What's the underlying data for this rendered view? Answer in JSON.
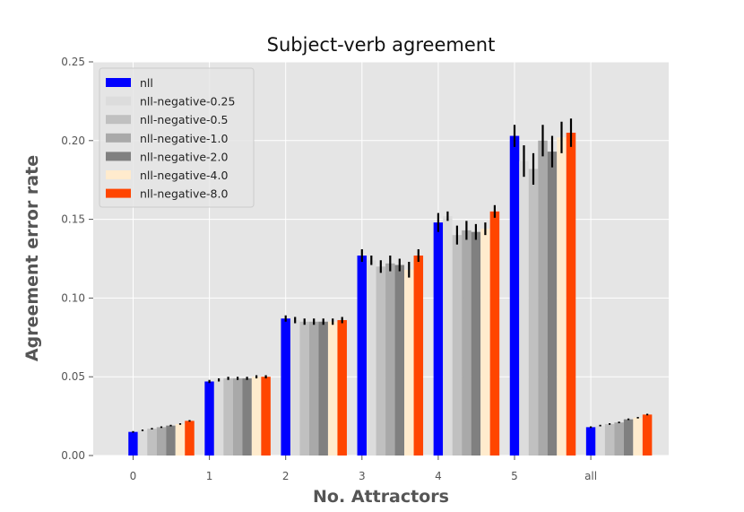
{
  "chart_data": {
    "type": "bar",
    "title": "Subject-verb agreement",
    "xlabel": "No. Attractors",
    "ylabel": "Agreement error rate",
    "categories": [
      "0",
      "1",
      "2",
      "3",
      "4",
      "5",
      "all"
    ],
    "ylim": [
      0,
      0.25
    ],
    "yticks": [
      "0.00",
      "0.05",
      "0.10",
      "0.15",
      "0.20",
      "0.25"
    ],
    "grid": true,
    "legend_position": "top-left",
    "series": [
      {
        "name": "nll",
        "color": "#0000ff",
        "values": [
          0.015,
          0.047,
          0.087,
          0.127,
          0.148,
          0.203,
          0.018
        ],
        "errors": [
          0.0005,
          0.001,
          0.002,
          0.004,
          0.006,
          0.007,
          0.0005
        ]
      },
      {
        "name": "nll-negative-0.25",
        "color": "#dcdcdc",
        "values": [
          0.016,
          0.048,
          0.086,
          0.124,
          0.152,
          0.187,
          0.019
        ],
        "errors": [
          0.0005,
          0.001,
          0.002,
          0.003,
          0.003,
          0.01,
          0.0005
        ]
      },
      {
        "name": "nll-negative-0.5",
        "color": "#c0c0c0",
        "values": [
          0.017,
          0.049,
          0.085,
          0.12,
          0.14,
          0.182,
          0.02
        ],
        "errors": [
          0.0005,
          0.001,
          0.002,
          0.004,
          0.006,
          0.01,
          0.0005
        ]
      },
      {
        "name": "nll-negative-1.0",
        "color": "#a9a9a9",
        "values": [
          0.018,
          0.049,
          0.085,
          0.122,
          0.143,
          0.2,
          0.021
        ],
        "errors": [
          0.0005,
          0.001,
          0.002,
          0.005,
          0.006,
          0.01,
          0.0005
        ]
      },
      {
        "name": "nll-negative-2.0",
        "color": "#808080",
        "values": [
          0.019,
          0.049,
          0.085,
          0.121,
          0.142,
          0.193,
          0.023
        ],
        "errors": [
          0.0005,
          0.001,
          0.002,
          0.004,
          0.005,
          0.01,
          0.0005
        ]
      },
      {
        "name": "nll-negative-4.0",
        "color": "#ffebcd",
        "values": [
          0.02,
          0.05,
          0.085,
          0.118,
          0.144,
          0.202,
          0.024
        ],
        "errors": [
          0.0005,
          0.001,
          0.002,
          0.005,
          0.004,
          0.01,
          0.0005
        ]
      },
      {
        "name": "nll-negative-8.0",
        "color": "#ff4500",
        "values": [
          0.022,
          0.05,
          0.086,
          0.127,
          0.155,
          0.205,
          0.026
        ],
        "errors": [
          0.0005,
          0.001,
          0.002,
          0.004,
          0.004,
          0.009,
          0.0005
        ]
      }
    ]
  }
}
